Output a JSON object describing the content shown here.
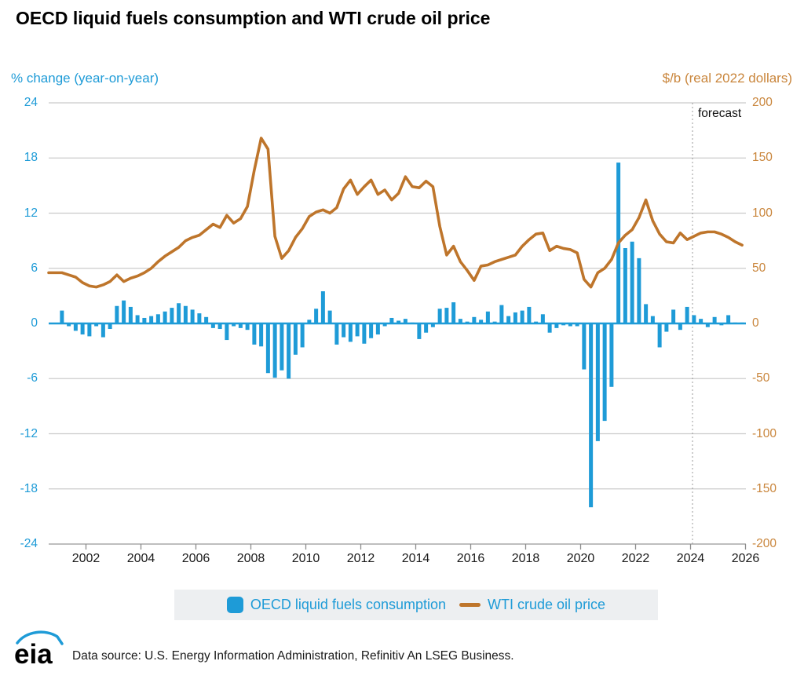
{
  "title": "OECD liquid fuels consumption and WTI crude oil price",
  "forecast_label": "forecast",
  "axes": {
    "left_title": "% change (year-on-year)",
    "right_title": "$/b (real 2022 dollars)",
    "left_ticks": [
      "24",
      "18",
      "12",
      "6",
      "0",
      "-6",
      "-12",
      "-18",
      "-24"
    ],
    "right_ticks": [
      "200",
      "150",
      "100",
      "50",
      "0",
      "-50",
      "-100",
      "-150",
      "-200"
    ],
    "x_ticks": [
      "2002",
      "2004",
      "2006",
      "2008",
      "2010",
      "2012",
      "2014",
      "2016",
      "2018",
      "2020",
      "2022",
      "2024",
      "2026"
    ]
  },
  "legend": {
    "items": [
      {
        "label": "OECD liquid fuels consumption",
        "marker": "blue-square"
      },
      {
        "label": "WTI crude oil price",
        "marker": "orange-line"
      }
    ]
  },
  "footer": {
    "logo_text": "eia",
    "source": "Data source: U.S. Energy Information Administration, Refinitiv An LSEG Business."
  },
  "colors": {
    "blue": "#1E9BD7",
    "orange_line": "#BE752B",
    "orange_label": "#C9853B",
    "grid": "#CBCBCB",
    "axis": "#A9A9A9",
    "tick": "#8C8C8C",
    "forecast_dash": "#9B9B9B",
    "text": "#1A1A1A",
    "legend_bg": "#EDEFF1"
  },
  "chart_data": {
    "type": "bar+line",
    "frequency": "quarterly",
    "x_start": "2001Q1",
    "x_end": "2025Q4",
    "left_ylim": [
      -24,
      24
    ],
    "right_ylim": [
      -200,
      200
    ],
    "grid": "horizontal",
    "legend_position": "bottom",
    "forecast_start": "2024Q1",
    "series": [
      {
        "name": "OECD liquid fuels consumption",
        "type": "bar",
        "axis": "left",
        "unit": "% change year-on-year",
        "values": [
          1.4,
          -0.3,
          -0.8,
          -1.2,
          -1.4,
          -0.3,
          -1.5,
          -0.6,
          1.9,
          2.5,
          1.8,
          0.9,
          0.6,
          0.8,
          1.0,
          1.3,
          1.7,
          2.2,
          1.9,
          1.5,
          1.1,
          0.7,
          -0.5,
          -0.6,
          -1.8,
          -0.3,
          -0.5,
          -0.7,
          -2.3,
          -2.5,
          -5.4,
          -5.9,
          -5.1,
          -6.0,
          -3.4,
          -2.6,
          0.4,
          1.6,
          3.5,
          1.4,
          -2.3,
          -1.5,
          -2.0,
          -1.4,
          -2.2,
          -1.6,
          -1.2,
          -0.3,
          0.6,
          0.3,
          0.5,
          0.1,
          -1.7,
          -1.0,
          -0.4,
          1.6,
          1.7,
          2.3,
          0.5,
          0.2,
          0.7,
          0.4,
          1.3,
          0.2,
          2.0,
          0.8,
          1.2,
          1.4,
          1.8,
          0.2,
          1.0,
          -1.0,
          -0.5,
          -0.2,
          -0.3,
          -0.3,
          -5.0,
          -20.0,
          -12.8,
          -10.6,
          -6.9,
          17.5,
          8.2,
          8.9,
          7.1,
          2.1,
          0.8,
          -2.6,
          -0.9,
          1.5,
          -0.7,
          1.8,
          0.9,
          0.5,
          -0.4,
          0.7,
          -0.2,
          0.9,
          0.1,
          0.1
        ]
      },
      {
        "name": "WTI crude oil price",
        "type": "line",
        "axis": "right",
        "unit": "$/b real 2022 dollars",
        "values": [
          46,
          44,
          42,
          37,
          34,
          33,
          35,
          38,
          44,
          38,
          41,
          43,
          46,
          50,
          56,
          61,
          65,
          69,
          75,
          78,
          80,
          85,
          90,
          87,
          98,
          91,
          95,
          106,
          139,
          168,
          158,
          79,
          59,
          66,
          78,
          86,
          97,
          101,
          103,
          100,
          105,
          122,
          130,
          117,
          124,
          130,
          117,
          121,
          112,
          118,
          133,
          124,
          123,
          129,
          124,
          88,
          62,
          70,
          56,
          48,
          39,
          52,
          53,
          56,
          58,
          60,
          62,
          70,
          76,
          81,
          82,
          66,
          70,
          68,
          67,
          64,
          40,
          33,
          46,
          50,
          58,
          73,
          80,
          85,
          96,
          112,
          93,
          81,
          74,
          73,
          82,
          76,
          79,
          82,
          83,
          83,
          81,
          78,
          74,
          71
        ]
      }
    ]
  }
}
